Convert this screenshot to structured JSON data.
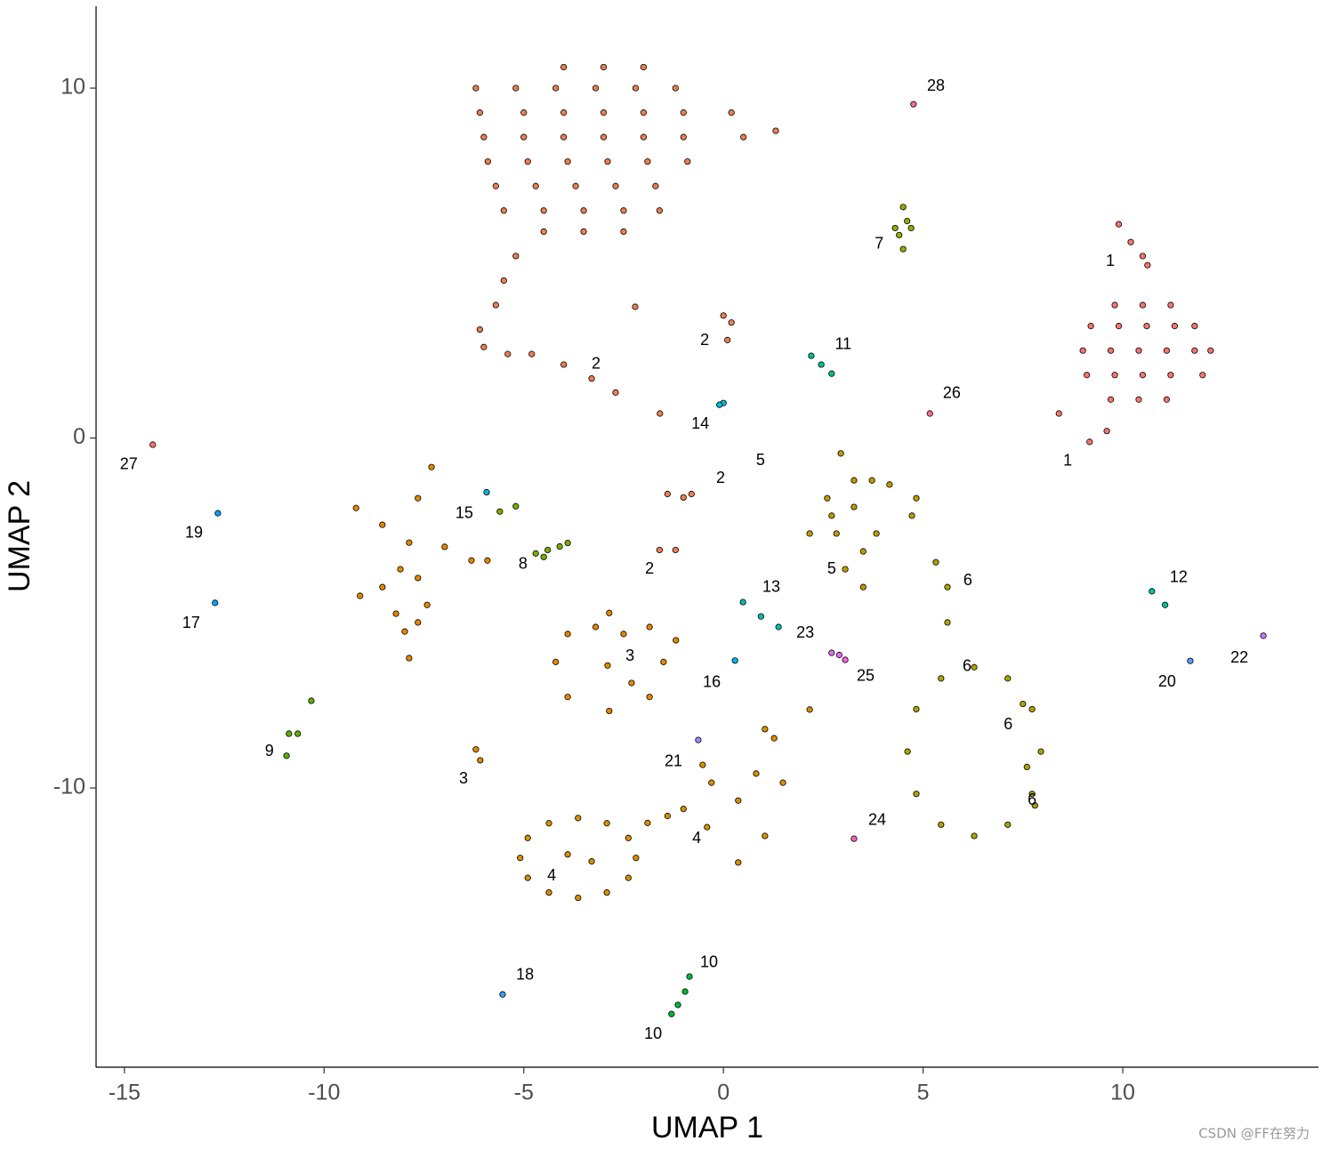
{
  "chart_data": {
    "type": "scatter",
    "xlabel": "UMAP 1",
    "ylabel": "UMAP 2",
    "xlim": [
      -15.71,
      14.9
    ],
    "ylim": [
      -17.98,
      12.34
    ],
    "xticks": [
      -15,
      -10,
      -5,
      0,
      5,
      10
    ],
    "yticks": [
      -10,
      0,
      10
    ],
    "watermark": "CSDN @FF在努力",
    "series": [
      {
        "color": "#F8766D",
        "x": [
          9.8,
          10.5,
          11.2,
          9.2,
          9.9,
          10.6,
          11.3,
          11.8,
          9.0,
          9.7,
          10.4,
          11.1,
          11.8,
          12.2,
          9.1,
          9.8,
          10.5,
          11.2,
          12.0,
          9.7,
          10.4,
          11.1,
          9.9,
          10.2,
          10.5,
          10.62,
          9.17,
          9.6,
          8.4
        ],
        "values": [
          3.8,
          3.8,
          3.8,
          3.2,
          3.2,
          3.2,
          3.2,
          3.2,
          2.5,
          2.5,
          2.5,
          2.5,
          2.5,
          2.5,
          1.8,
          1.8,
          1.8,
          1.8,
          1.8,
          1.1,
          1.1,
          1.1,
          6.11,
          5.6,
          5.2,
          4.94,
          -0.11,
          0.2,
          0.7
        ]
      },
      {
        "color": "#EE7F4F",
        "x": [
          -4,
          -3,
          -2,
          -6.2,
          -5.2,
          -4.2,
          -3.2,
          -2.2,
          -1.2,
          -6.1,
          -5,
          -4,
          -3,
          -2,
          -1,
          0.2,
          -6,
          -5,
          -4,
          -3,
          -2,
          -1,
          0.5,
          -5.9,
          -4.9,
          -3.9,
          -2.9,
          -1.9,
          -0.9,
          -5.7,
          -4.7,
          -3.7,
          -2.7,
          -1.7,
          -5.5,
          -4.5,
          -3.5,
          -2.5,
          -1.6,
          -4.5,
          -3.5,
          -2.5,
          -5.2,
          -5.5,
          -5.7,
          -6.1,
          -6.0,
          -5.4,
          -4.8,
          -4.0,
          -3.3,
          -2.7,
          0.0,
          0.2,
          0.1,
          -1.4,
          -0.8,
          -1.0,
          -1.6,
          -1.2,
          1.31,
          -2.21,
          -1.59
        ],
        "values": [
          10.6,
          10.6,
          10.6,
          10,
          10,
          10,
          10,
          10,
          10,
          9.3,
          9.3,
          9.3,
          9.3,
          9.3,
          9.3,
          9.3,
          8.6,
          8.6,
          8.6,
          8.6,
          8.6,
          8.6,
          8.6,
          7.9,
          7.9,
          7.9,
          7.9,
          7.9,
          7.9,
          7.2,
          7.2,
          7.2,
          7.2,
          7.2,
          6.5,
          6.5,
          6.5,
          6.5,
          6.5,
          5.9,
          5.9,
          5.9,
          5.2,
          4.5,
          3.8,
          3.1,
          2.6,
          2.4,
          2.4,
          2.1,
          1.7,
          1.3,
          3.5,
          3.3,
          2.8,
          -1.6,
          -1.6,
          -1.7,
          -3.2,
          -3.2,
          8.78,
          3.75,
          0.7
        ]
      },
      {
        "color": "#E58700",
        "x": [
          -9.2,
          -8.54,
          -7.87,
          -7.31,
          -7.65,
          -6.98,
          -6.31,
          -5.91,
          -7.87,
          -7.65,
          -9.1,
          -8.54,
          -8.09,
          -7.65,
          -7.42,
          -8.2,
          -7.98,
          -2.86,
          -1.85,
          -1.5,
          -1.85,
          -2.86,
          -3.9,
          -4.2,
          -3.9,
          -3.2,
          -2.5,
          -2.9,
          -2.3,
          -6.09,
          -6.2,
          -1.19
        ],
        "values": [
          -2.0,
          -2.48,
          -2.99,
          -0.83,
          -1.72,
          -3.11,
          -3.5,
          -3.5,
          -6.29,
          -5.27,
          -4.51,
          -4.26,
          -3.75,
          -4.0,
          -4.77,
          -5.02,
          -5.53,
          -5.0,
          -5.4,
          -6.4,
          -7.4,
          -7.8,
          -7.4,
          -6.4,
          -5.6,
          -5.4,
          -5.6,
          -6.5,
          -7.0,
          -9.21,
          -8.9,
          -5.78
        ]
      },
      {
        "color": "#D89000",
        "x": [
          -2.19,
          -2.38,
          -2.92,
          -3.64,
          -4.37,
          -4.9,
          -5.09,
          -4.9,
          -4.37,
          -3.64,
          -2.92,
          -2.38,
          -1.9,
          -1.4,
          -1.0,
          -3.9,
          -3.3,
          2.16,
          1.27,
          0.82,
          0.37,
          -0.3,
          -0.41,
          0.37,
          1.04,
          1.49,
          1.04,
          -0.52
        ],
        "values": [
          -12.0,
          -11.43,
          -11.01,
          -10.86,
          -11.01,
          -11.43,
          -12.0,
          -12.57,
          -12.99,
          -13.14,
          -12.99,
          -12.57,
          -11.0,
          -10.8,
          -10.6,
          -11.9,
          -12.1,
          -7.76,
          -8.58,
          -9.59,
          -10.36,
          -9.85,
          -11.12,
          -12.13,
          -11.37,
          -9.85,
          -8.32,
          -9.34
        ]
      },
      {
        "color": "#C09B00",
        "x": [
          2.94,
          3.27,
          4.16,
          4.83,
          4.72,
          2.6,
          2.16,
          2.83,
          3.5,
          3.83,
          3.05,
          3.5,
          2.71,
          3.72,
          3.27
        ],
        "values": [
          -0.44,
          -1.21,
          -1.33,
          -1.72,
          -2.22,
          -1.72,
          -2.73,
          -2.73,
          -3.24,
          -2.73,
          -3.75,
          -4.26,
          -2.22,
          -1.21,
          -1.97
        ]
      },
      {
        "color": "#AEA200",
        "x": [
          7.95,
          7.73,
          7.12,
          6.28,
          5.45,
          4.83,
          4.61,
          4.83,
          5.45,
          6.28,
          7.12,
          7.73,
          7.6,
          7.8,
          7.5,
          5.32,
          5.61,
          5.61
        ],
        "values": [
          -8.96,
          -7.75,
          -6.87,
          -6.55,
          -6.87,
          -7.75,
          -8.96,
          -10.17,
          -11.05,
          -11.37,
          -11.05,
          -10.17,
          -9.4,
          -10.5,
          -7.6,
          -3.55,
          -4.26,
          -5.27
        ]
      },
      {
        "color": "#99A800",
        "x": [
          4.5,
          4.6,
          4.4,
          4.5,
          4.3,
          4.7
        ],
        "values": [
          6.6,
          6.2,
          5.8,
          5.4,
          6.0,
          6.0
        ]
      },
      {
        "color": "#7CAE00",
        "x": [
          -4.7,
          -4.4,
          -4.1,
          -3.9,
          -4.5,
          -5.6,
          -5.2
        ],
        "values": [
          -3.3,
          -3.2,
          -3.1,
          -3.0,
          -3.4,
          -2.1,
          -1.95
        ]
      },
      {
        "color": "#5BB300",
        "x": [
          -10.32,
          -10.66,
          -10.94,
          -10.88
        ],
        "values": [
          -7.51,
          -8.45,
          -9.08,
          -8.45
        ]
      },
      {
        "color": "#00BA38",
        "x": [
          -0.85,
          -0.96,
          -1.14,
          -1.3
        ],
        "values": [
          -15.39,
          -15.82,
          -16.2,
          -16.46
        ]
      },
      {
        "color": "#00C08B",
        "x": [
          2.2,
          2.45,
          2.71
        ],
        "values": [
          2.35,
          2.1,
          1.84
        ]
      },
      {
        "color": "#00C1A3",
        "x": [
          10.73,
          11.06
        ],
        "values": [
          -4.38,
          -4.77
        ]
      },
      {
        "color": "#00BFB0",
        "x": [
          0.49,
          0.94,
          1.38
        ],
        "values": [
          -4.69,
          -5.1,
          -5.4
        ]
      },
      {
        "color": "#00BCD8",
        "x": [
          0.0,
          -0.1
        ],
        "values": [
          1.0,
          0.95
        ]
      },
      {
        "color": "#00BBDA",
        "x": [
          -5.93
        ],
        "values": [
          -1.55
        ]
      },
      {
        "color": "#00B4EF",
        "x": [
          0.29
        ],
        "values": [
          -6.36
        ]
      },
      {
        "color": "#00A9FF",
        "x": [
          -12.73
        ],
        "values": [
          -4.71
        ]
      },
      {
        "color": "#35A2FF",
        "x": [
          -5.53
        ],
        "values": [
          -15.9
        ]
      },
      {
        "color": "#00A5FF",
        "x": [
          -12.66
        ],
        "values": [
          -2.15
        ]
      },
      {
        "color": "#619CFF",
        "x": [
          11.69
        ],
        "values": [
          -6.37
        ]
      },
      {
        "color": "#9590FF",
        "x": [
          -0.63
        ],
        "values": [
          -8.63
        ]
      },
      {
        "color": "#C77CFF",
        "x": [
          13.52
        ],
        "values": [
          -5.65
        ]
      },
      {
        "color": "#E76BF3",
        "x": [
          2.71,
          2.9
        ],
        "values": [
          -6.14,
          -6.2
        ]
      },
      {
        "color": "#FF62BC",
        "x": [
          3.27
        ],
        "values": [
          -11.45
        ]
      },
      {
        "color": "#FA62DB",
        "x": [
          3.05
        ],
        "values": [
          -6.34
        ]
      },
      {
        "color": "#FF6C91",
        "x": [
          5.17
        ],
        "values": [
          0.7
        ]
      },
      {
        "color": "#F8766D",
        "x": [
          -14.29
        ],
        "values": [
          -0.19
        ]
      },
      {
        "color": "#FF6A98",
        "x": [
          4.76
        ],
        "values": [
          9.54
        ]
      }
    ],
    "annotations": [
      {
        "text": "28",
        "x": 5.32,
        "y": 10.05
      },
      {
        "text": "7",
        "x": 3.9,
        "y": 5.53
      },
      {
        "text": "1",
        "x": 9.69,
        "y": 5.04
      },
      {
        "text": "1",
        "x": 8.62,
        "y": -0.67
      },
      {
        "text": "2",
        "x": -3.19,
        "y": 2.1
      },
      {
        "text": "2",
        "x": -0.47,
        "y": 2.78
      },
      {
        "text": "11",
        "x": 3.0,
        "y": 2.66
      },
      {
        "text": "26",
        "x": 5.72,
        "y": 1.26
      },
      {
        "text": "14",
        "x": -0.58,
        "y": 0.39
      },
      {
        "text": "5",
        "x": 0.93,
        "y": -0.65
      },
      {
        "text": "2",
        "x": -0.07,
        "y": -1.16
      },
      {
        "text": "27",
        "x": -14.89,
        "y": -0.77
      },
      {
        "text": "19",
        "x": -13.26,
        "y": -2.73
      },
      {
        "text": "15",
        "x": -6.49,
        "y": -2.17
      },
      {
        "text": "8",
        "x": -5.02,
        "y": -3.62
      },
      {
        "text": "2",
        "x": -1.85,
        "y": -3.75
      },
      {
        "text": "5",
        "x": 2.71,
        "y": -3.75
      },
      {
        "text": "6",
        "x": 6.12,
        "y": -4.08
      },
      {
        "text": "12",
        "x": 11.4,
        "y": -4.0
      },
      {
        "text": "13",
        "x": 1.2,
        "y": -4.28
      },
      {
        "text": "17",
        "x": -13.33,
        "y": -5.3
      },
      {
        "text": "23",
        "x": 2.05,
        "y": -5.58
      },
      {
        "text": "3",
        "x": -2.34,
        "y": -6.24
      },
      {
        "text": "22",
        "x": 12.92,
        "y": -6.29
      },
      {
        "text": "6",
        "x": 6.1,
        "y": -6.54
      },
      {
        "text": "16",
        "x": -0.29,
        "y": -7.0
      },
      {
        "text": "25",
        "x": 3.56,
        "y": -6.82
      },
      {
        "text": "20",
        "x": 11.11,
        "y": -6.98
      },
      {
        "text": "6",
        "x": 7.13,
        "y": -8.2
      },
      {
        "text": "9",
        "x": -11.37,
        "y": -8.96
      },
      {
        "text": "21",
        "x": -1.25,
        "y": -9.26
      },
      {
        "text": "3",
        "x": -6.51,
        "y": -9.75
      },
      {
        "text": "6",
        "x": 7.73,
        "y": -10.36
      },
      {
        "text": "24",
        "x": 3.85,
        "y": -10.94
      },
      {
        "text": "4",
        "x": -0.67,
        "y": -11.45
      },
      {
        "text": "4",
        "x": -4.3,
        "y": -12.52
      },
      {
        "text": "18",
        "x": -4.97,
        "y": -15.36
      },
      {
        "text": "10",
        "x": -0.36,
        "y": -15.0
      },
      {
        "text": "10",
        "x": -1.76,
        "y": -17.04
      }
    ]
  }
}
